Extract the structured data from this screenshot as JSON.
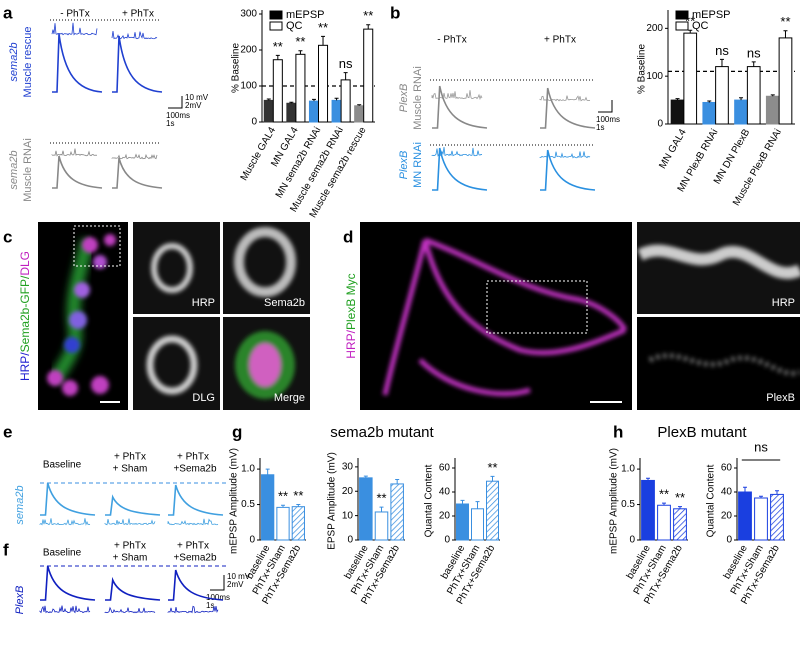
{
  "panel_labels": [
    "a",
    "b",
    "c",
    "d",
    "e",
    "f",
    "g",
    "h"
  ],
  "panel_a_traces": {
    "conditions": [
      "- PhTx",
      "+ PhTx"
    ],
    "rows": [
      [
        "sema2b",
        "Muscle rescue"
      ],
      [
        "sema2b",
        "Muscle RNAi"
      ]
    ],
    "scale": [
      "10 mV",
      "2mV",
      "100ms",
      "1s"
    ]
  },
  "panel_b_traces": {
    "conditions": [
      "- PhTx",
      "+ PhTx"
    ],
    "rows": [
      [
        "PlexB",
        "Muscle RNAi"
      ],
      [
        "PlexB",
        "MN RNAi"
      ]
    ],
    "scale": [
      "100ms",
      "1s"
    ]
  },
  "panel_c": {
    "stain": [
      "HRP/",
      "Sema2b-GFP/",
      "DLG"
    ],
    "tiles": [
      "HRP",
      "Sema2b",
      "DLG",
      "Merge"
    ]
  },
  "panel_d": {
    "stain": [
      "HRP/",
      "PlexB Myc"
    ],
    "tiles": [
      "HRP",
      "PlexB"
    ]
  },
  "panel_e": {
    "conditions": [
      [
        "Baseline"
      ],
      [
        "+ PhTx",
        "+ Sham"
      ],
      [
        "+ PhTx",
        "+Sema2b"
      ]
    ],
    "genotype": "sema2b"
  },
  "panel_f": {
    "conditions": [
      [
        "Baseline"
      ],
      [
        "+ PhTx",
        "+ Sham"
      ],
      [
        "+ PhTx",
        "+Sema2b"
      ]
    ],
    "genotype": "PlexB",
    "scale": [
      "10 mV",
      "2mV",
      "100ms",
      "1s"
    ]
  },
  "panel_g_title": "sema2b mutant",
  "panel_h_title": "PlexB mutant",
  "chart_data": [
    {
      "type": "bar",
      "ylabel": "% Baseline",
      "categories": [
        "Muscle GAL4",
        "MN GAL4",
        "MN sema2b RNAi",
        "Muscle sema2b RNAi",
        "Muscle sema2b rescue"
      ],
      "series": [
        {
          "name": "mEPSP",
          "color": "#000000",
          "colors": [
            "#333333",
            "#333333",
            "#3a8fe0",
            "#3a8fe0",
            "#8c8c8c"
          ],
          "values": [
            60,
            52,
            58,
            60,
            45
          ],
          "errors": [
            4,
            3,
            5,
            6,
            3
          ]
        },
        {
          "name": "QC",
          "color": "#ffffff",
          "edgecolor": "#000000",
          "colors": [
            "#ffffff",
            "#ffffff",
            "#ffffff",
            "#ffffff",
            "#ffffff"
          ],
          "values": [
            173,
            188,
            213,
            117,
            258
          ],
          "errors": [
            12,
            10,
            25,
            20,
            12
          ]
        }
      ],
      "ylim": [
        0,
        300
      ],
      "yticks": [
        0,
        100,
        200,
        300
      ],
      "reference_line": 100,
      "sig_labels": [
        "**",
        "**",
        "**",
        "ns",
        "**"
      ],
      "legend": "upper left"
    },
    {
      "type": "bar",
      "ylabel": "% Baseline",
      "categories": [
        "MN GAL4",
        "MN PlexB RNAi",
        "MN DN PlexB",
        "Muscle PlexB RNAi"
      ],
      "series": [
        {
          "name": "mEPSP",
          "color": "#000000",
          "colors": [
            "#111111",
            "#3a8fe0",
            "#3a8fe0",
            "#8c8c8c"
          ],
          "values": [
            50,
            45,
            50,
            58
          ],
          "errors": [
            3,
            3,
            5,
            3
          ]
        },
        {
          "name": "QC",
          "color": "#ffffff",
          "edgecolor": "#000000",
          "colors": [
            "#ffffff",
            "#ffffff",
            "#ffffff",
            "#ffffff"
          ],
          "values": [
            190,
            120,
            120,
            180
          ],
          "errors": [
            6,
            15,
            10,
            15
          ]
        }
      ],
      "ylim": [
        0,
        230
      ],
      "yticks": [
        0,
        100,
        200
      ],
      "reference_line": 110,
      "sig_labels": [
        "**",
        "ns",
        "ns",
        "**"
      ],
      "legend": "upper left"
    },
    {
      "type": "bar",
      "ylabel": "mEPSP Amplitude (mV)",
      "categories": [
        "baseline",
        "PhTx+Sham",
        "PhTx+Sema2b"
      ],
      "values": [
        0.92,
        0.46,
        0.47
      ],
      "errors": [
        0.08,
        0.03,
        0.03
      ],
      "colors": [
        "#3a8fe0",
        "#ffffff",
        "#ffffff"
      ],
      "edgecolor": "#3a8fe0",
      "hatch": [
        false,
        false,
        true
      ],
      "ylim": [
        0,
        1.1
      ],
      "yticks": [
        0,
        0.5,
        {
          "value": 1,
          "label": "1.0"
        }
      ],
      "sig_labels": [
        null,
        "**",
        "**"
      ]
    },
    {
      "type": "bar",
      "ylabel": "EPSP Amplitude (mV)",
      "categories": [
        "baseline",
        "PhTx+Sham",
        "PhTx+Sema2b"
      ],
      "values": [
        25.5,
        11.5,
        23
      ],
      "errors": [
        0.7,
        2,
        1.8
      ],
      "colors": [
        "#3a8fe0",
        "#ffffff",
        "#ffffff"
      ],
      "edgecolor": "#3a8fe0",
      "hatch": [
        false,
        false,
        true
      ],
      "ylim": [
        0,
        32
      ],
      "yticks": [
        0,
        10,
        20,
        30
      ],
      "sig_labels": [
        null,
        "**",
        null
      ]
    },
    {
      "type": "bar",
      "ylabel": "Quantal Content",
      "categories": [
        "baseline",
        "PhTx+Sham",
        "PhTx+Sema2b"
      ],
      "values": [
        30,
        26,
        49
      ],
      "errors": [
        3,
        6,
        4
      ],
      "colors": [
        "#3a8fe0",
        "#ffffff",
        "#ffffff"
      ],
      "edgecolor": "#3a8fe0",
      "hatch": [
        false,
        false,
        true
      ],
      "ylim": [
        0,
        65
      ],
      "yticks": [
        0,
        20,
        40,
        60
      ],
      "sig_labels": [
        null,
        null,
        "**"
      ]
    },
    {
      "type": "bar",
      "ylabel": "mEPSP Amplitude (mV)",
      "categories": [
        "baseline",
        "PhTx+Sham",
        "PhTx+Sema2b"
      ],
      "values": [
        0.84,
        0.49,
        0.44
      ],
      "errors": [
        0.03,
        0.03,
        0.03
      ],
      "colors": [
        "#1a3fe0",
        "#ffffff",
        "#ffffff"
      ],
      "edgecolor": "#1a3fe0",
      "hatch": [
        false,
        false,
        true
      ],
      "ylim": [
        0,
        1.1
      ],
      "yticks": [
        0,
        0.5,
        {
          "value": 1,
          "label": "1.0"
        }
      ],
      "sig_labels": [
        null,
        "**",
        "**"
      ]
    },
    {
      "type": "bar",
      "ylabel": "Quantal Content",
      "categories": [
        "baseline",
        "PhTx+Sham",
        "PhTx+Sema2b"
      ],
      "values": [
        40,
        35,
        38
      ],
      "errors": [
        4,
        1.5,
        3
      ],
      "colors": [
        "#1a3fe0",
        "#ffffff",
        "#ffffff"
      ],
      "edgecolor": "#1a3fe0",
      "hatch": [
        false,
        false,
        true
      ],
      "ylim": [
        0,
        65
      ],
      "yticks": [
        0,
        20,
        40,
        60
      ],
      "bracket_label": "ns"
    }
  ]
}
